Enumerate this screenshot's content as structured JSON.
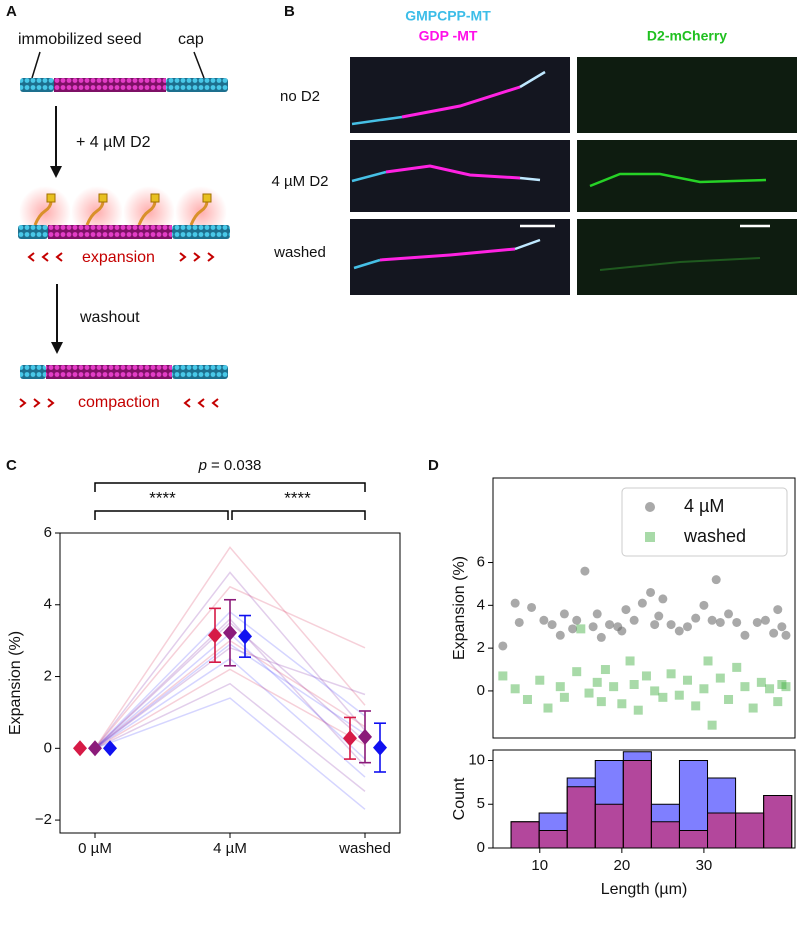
{
  "panel_labels": [
    "A",
    "B",
    "C",
    "D"
  ],
  "panel_a": {
    "seed_label": "immobilized seed",
    "cap_label": "cap",
    "step1": "+ 4 µM D2",
    "expansion": "expansion",
    "step2": "washout",
    "compaction": "compaction"
  },
  "panel_b": {
    "channel_headers": [
      "GMPCPP-MT",
      "GDP -MT",
      "D2-mCherry"
    ],
    "rows": [
      "no D2",
      "4 µM D2",
      "washed"
    ]
  },
  "chart_data": [
    {
      "type": "errorbar",
      "ylabel": "Expansion (%)",
      "categories": [
        "0 µM",
        "4 µM",
        "washed"
      ],
      "ylim": [
        -2.36,
        6.0
      ],
      "yticks": [
        {
          "value": -2,
          "label": "−2"
        },
        0,
        2,
        4,
        6
      ],
      "traces": [
        {
          "color": "#d62750",
          "values": [
            0,
            5.6,
            1.2
          ]
        },
        {
          "color": "#7a1fa2",
          "values": [
            0,
            4.9,
            0.5
          ]
        },
        {
          "color": "#d62750",
          "values": [
            0,
            4.5,
            2.8
          ]
        },
        {
          "color": "#3f3fff",
          "values": [
            0,
            3.8,
            0.9
          ]
        },
        {
          "color": "#7a1fa2",
          "values": [
            0,
            3.5,
            0.2
          ]
        },
        {
          "color": "#3f3fff",
          "values": [
            0,
            3.2,
            -0.3
          ]
        },
        {
          "color": "#d62750",
          "values": [
            0,
            3.0,
            0.6
          ]
        },
        {
          "color": "#7a1fa2",
          "values": [
            0,
            2.8,
            1.5
          ]
        },
        {
          "color": "#3f3fff",
          "values": [
            0,
            2.5,
            -0.8
          ]
        },
        {
          "color": "#d62750",
          "values": [
            0,
            2.2,
            0.1
          ]
        },
        {
          "color": "#7a1fa2",
          "values": [
            0,
            1.8,
            -1.2
          ]
        },
        {
          "color": "#3f3fff",
          "values": [
            0,
            1.4,
            -1.7
          ]
        },
        {
          "color": "#7a1fa2",
          "values": [
            0,
            3.6,
            -0.5
          ]
        },
        {
          "color": "#3f3fff",
          "values": [
            0,
            2.9,
            0.4
          ]
        }
      ],
      "series": [
        {
          "color": "#d61a46",
          "values": [
            0,
            3.15,
            0.28
          ],
          "errors": [
            0,
            0.75,
            0.58
          ]
        },
        {
          "color": "#8b1a7a",
          "values": [
            0,
            3.22,
            0.32
          ],
          "errors": [
            0,
            0.92,
            0.72
          ]
        },
        {
          "color": "#1010f0",
          "values": [
            0,
            3.12,
            0.02
          ],
          "errors": [
            0,
            0.58,
            0.68
          ]
        }
      ],
      "annotations": [
        "****",
        "****"
      ],
      "p_symbol": "p",
      "p_value": "= 0.038"
    },
    {
      "type": "scatter",
      "ylabel": "Expansion (%)",
      "xlim": [
        4.3,
        41.1
      ],
      "ylim": [
        -2.2,
        9.95
      ],
      "yticks": [
        0,
        2,
        4,
        6
      ],
      "legend": "upper right",
      "series": [
        {
          "name": "4 µM",
          "color": "#707070",
          "alpha": 0.6,
          "marker": "circle",
          "x": [
            5.5,
            7,
            7.5,
            9,
            10.5,
            11.5,
            12.5,
            13,
            14,
            14.5,
            15.5,
            16.5,
            17,
            17.5,
            18.5,
            19.5,
            20,
            20.5,
            21.5,
            22.5,
            23.5,
            24,
            24.5,
            25,
            26,
            27,
            28,
            29,
            30,
            31,
            31.5,
            32,
            33,
            34,
            35,
            36.5,
            37.5,
            38.5,
            39,
            39.5,
            40
          ],
          "values": [
            2.1,
            4.1,
            3.2,
            3.9,
            3.3,
            3.1,
            2.6,
            3.6,
            2.9,
            3.3,
            5.6,
            3.0,
            3.6,
            2.5,
            3.1,
            3.0,
            2.8,
            3.8,
            3.3,
            4.1,
            4.6,
            3.1,
            3.5,
            4.3,
            3.1,
            2.8,
            3.0,
            3.4,
            4.0,
            3.3,
            5.2,
            3.2,
            3.6,
            3.2,
            2.6,
            3.2,
            3.3,
            2.7,
            3.8,
            3.0,
            2.6
          ]
        },
        {
          "name": "washed",
          "color": "#3fae3f",
          "alpha": 0.45,
          "marker": "square",
          "x": [
            5.5,
            7,
            8.5,
            10,
            11,
            12.5,
            13,
            14.5,
            15,
            16,
            17,
            17.5,
            18,
            19,
            20,
            21,
            21.5,
            22,
            23,
            24,
            25,
            26,
            27,
            28,
            29,
            30,
            30.5,
            31,
            32,
            33,
            34,
            35,
            36,
            37,
            38,
            39,
            39.5,
            40
          ],
          "values": [
            0.7,
            0.1,
            -0.4,
            0.5,
            -0.8,
            0.2,
            -0.3,
            0.9,
            2.9,
            -0.1,
            0.4,
            -0.5,
            1.0,
            0.2,
            -0.6,
            1.4,
            0.3,
            -0.9,
            0.7,
            0.0,
            -0.3,
            0.8,
            -0.2,
            0.5,
            -0.7,
            0.1,
            1.4,
            -1.6,
            0.6,
            -0.4,
            1.1,
            0.2,
            -0.8,
            0.4,
            0.1,
            -0.5,
            0.3,
            0.2
          ]
        }
      ]
    },
    {
      "type": "histogram",
      "xlabel": "Length (µm)",
      "ylabel": "Count",
      "xlim": [
        4.3,
        41.1
      ],
      "ylim": [
        0,
        11.2
      ],
      "xticks": [
        10,
        20,
        30
      ],
      "yticks": [
        0,
        5,
        10
      ],
      "bins": [
        6.5,
        9.92,
        13.34,
        16.76,
        20.18,
        23.6,
        27.02,
        30.44,
        33.86,
        37.28,
        40.7
      ],
      "series": [
        {
          "color": "#0000ff",
          "alpha": 0.5,
          "values": [
            3,
            4,
            8,
            10,
            11,
            5,
            10,
            8,
            4,
            6
          ]
        },
        {
          "color": "#e8103a",
          "alpha": 0.5,
          "values": [
            3,
            2,
            7,
            5,
            10,
            3,
            2,
            4,
            4,
            6
          ]
        }
      ]
    }
  ]
}
